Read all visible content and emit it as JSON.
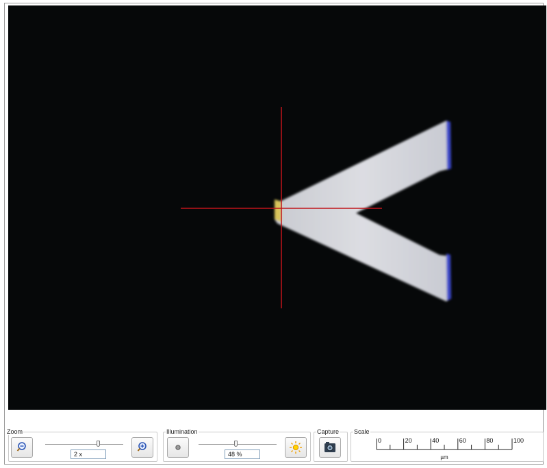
{
  "zoom": {
    "title": "Zoom",
    "value": "2 x",
    "level_fraction": 0.72,
    "zoom_out_icon": "magnifier-minus-icon",
    "zoom_in_icon": "magnifier-plus-icon"
  },
  "illumination": {
    "title": "Illumination",
    "value": "48 %",
    "level_fraction": 0.48,
    "dim_icon": "light-off-icon",
    "bright_icon": "sun-icon"
  },
  "capture": {
    "title": "Capture",
    "icon": "camera-icon"
  },
  "scale": {
    "title": "Scale",
    "ticks": [
      "0",
      "20",
      "40",
      "60",
      "80",
      "100"
    ],
    "unit": "µm"
  },
  "viewer": {
    "crosshair_color": "#c0141a",
    "background_color": "#060809",
    "sample_color": "#d7d9de"
  }
}
